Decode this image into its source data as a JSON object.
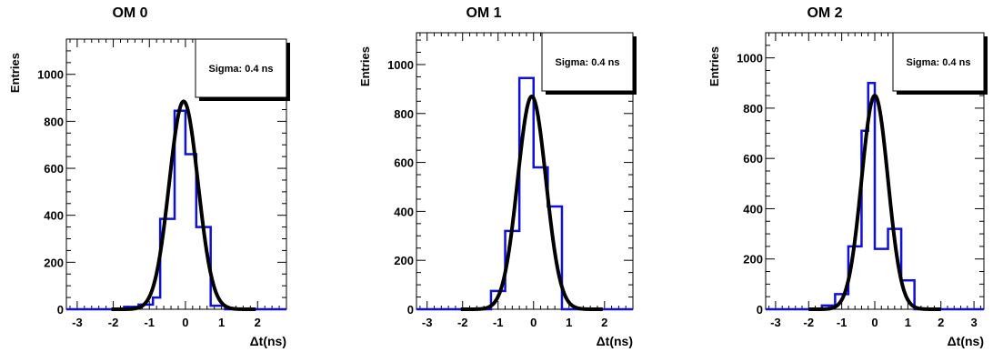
{
  "chart_data": [
    {
      "type": "histogram",
      "title": "OM 0",
      "xlabel": "Δt(ns)",
      "ylabel": "Entries",
      "xlim": [
        -3.3,
        2.8
      ],
      "ylim": [
        0,
        1150
      ],
      "xticks": [
        -3,
        -2,
        -1,
        0,
        1,
        2
      ],
      "yticks": [
        0,
        200,
        400,
        600,
        800,
        1000
      ],
      "grid": false,
      "stats_box": "Sigma: 0.4 ns",
      "histogram": {
        "bin_edges": [
          -3.3,
          -1.7,
          -1.3,
          -0.9,
          -0.7,
          -0.3,
          0.0,
          0.3,
          0.7,
          1.1,
          2.8
        ],
        "counts": [
          0,
          10,
          20,
          50,
          385,
          845,
          660,
          350,
          15,
          0
        ]
      },
      "fit": {
        "function": "gaussian",
        "amplitude": 885,
        "mean": -0.05,
        "sigma": 0.4
      }
    },
    {
      "type": "histogram",
      "title": "OM 1",
      "xlabel": "Δt(ns)",
      "ylabel": "Entries",
      "xlim": [
        -3.3,
        2.8
      ],
      "ylim": [
        0,
        1130
      ],
      "xticks": [
        -3,
        -2,
        -1,
        0,
        1,
        2
      ],
      "yticks": [
        0,
        200,
        400,
        600,
        800,
        1000
      ],
      "grid": false,
      "stats_box": "Sigma: 0.4 ns",
      "histogram": {
        "bin_edges": [
          -3.3,
          -1.2,
          -0.8,
          -0.4,
          0.0,
          0.4,
          0.8,
          2.8
        ],
        "counts": [
          0,
          75,
          320,
          945,
          580,
          420,
          0
        ]
      },
      "fit": {
        "function": "gaussian",
        "amplitude": 870,
        "mean": -0.05,
        "sigma": 0.4
      }
    },
    {
      "type": "histogram",
      "title": "OM 2",
      "xlabel": "Δt(ns)",
      "ylabel": "Entries",
      "xlim": [
        -3.3,
        3.3
      ],
      "ylim": [
        0,
        1100
      ],
      "xticks": [
        -3,
        -2,
        -1,
        0,
        1,
        2,
        3
      ],
      "yticks": [
        0,
        200,
        400,
        600,
        800,
        1000
      ],
      "grid": false,
      "stats_box": "Sigma: 0.4 ns",
      "histogram": {
        "bin_edges": [
          -3.3,
          -1.6,
          -1.2,
          -0.8,
          -0.4,
          -0.2,
          0.0,
          0.4,
          0.8,
          1.2,
          3.3
        ],
        "counts": [
          0,
          15,
          60,
          250,
          710,
          900,
          240,
          320,
          115,
          0
        ]
      },
      "fit": {
        "function": "gaussian",
        "amplitude": 850,
        "mean": 0.0,
        "sigma": 0.4
      }
    }
  ]
}
